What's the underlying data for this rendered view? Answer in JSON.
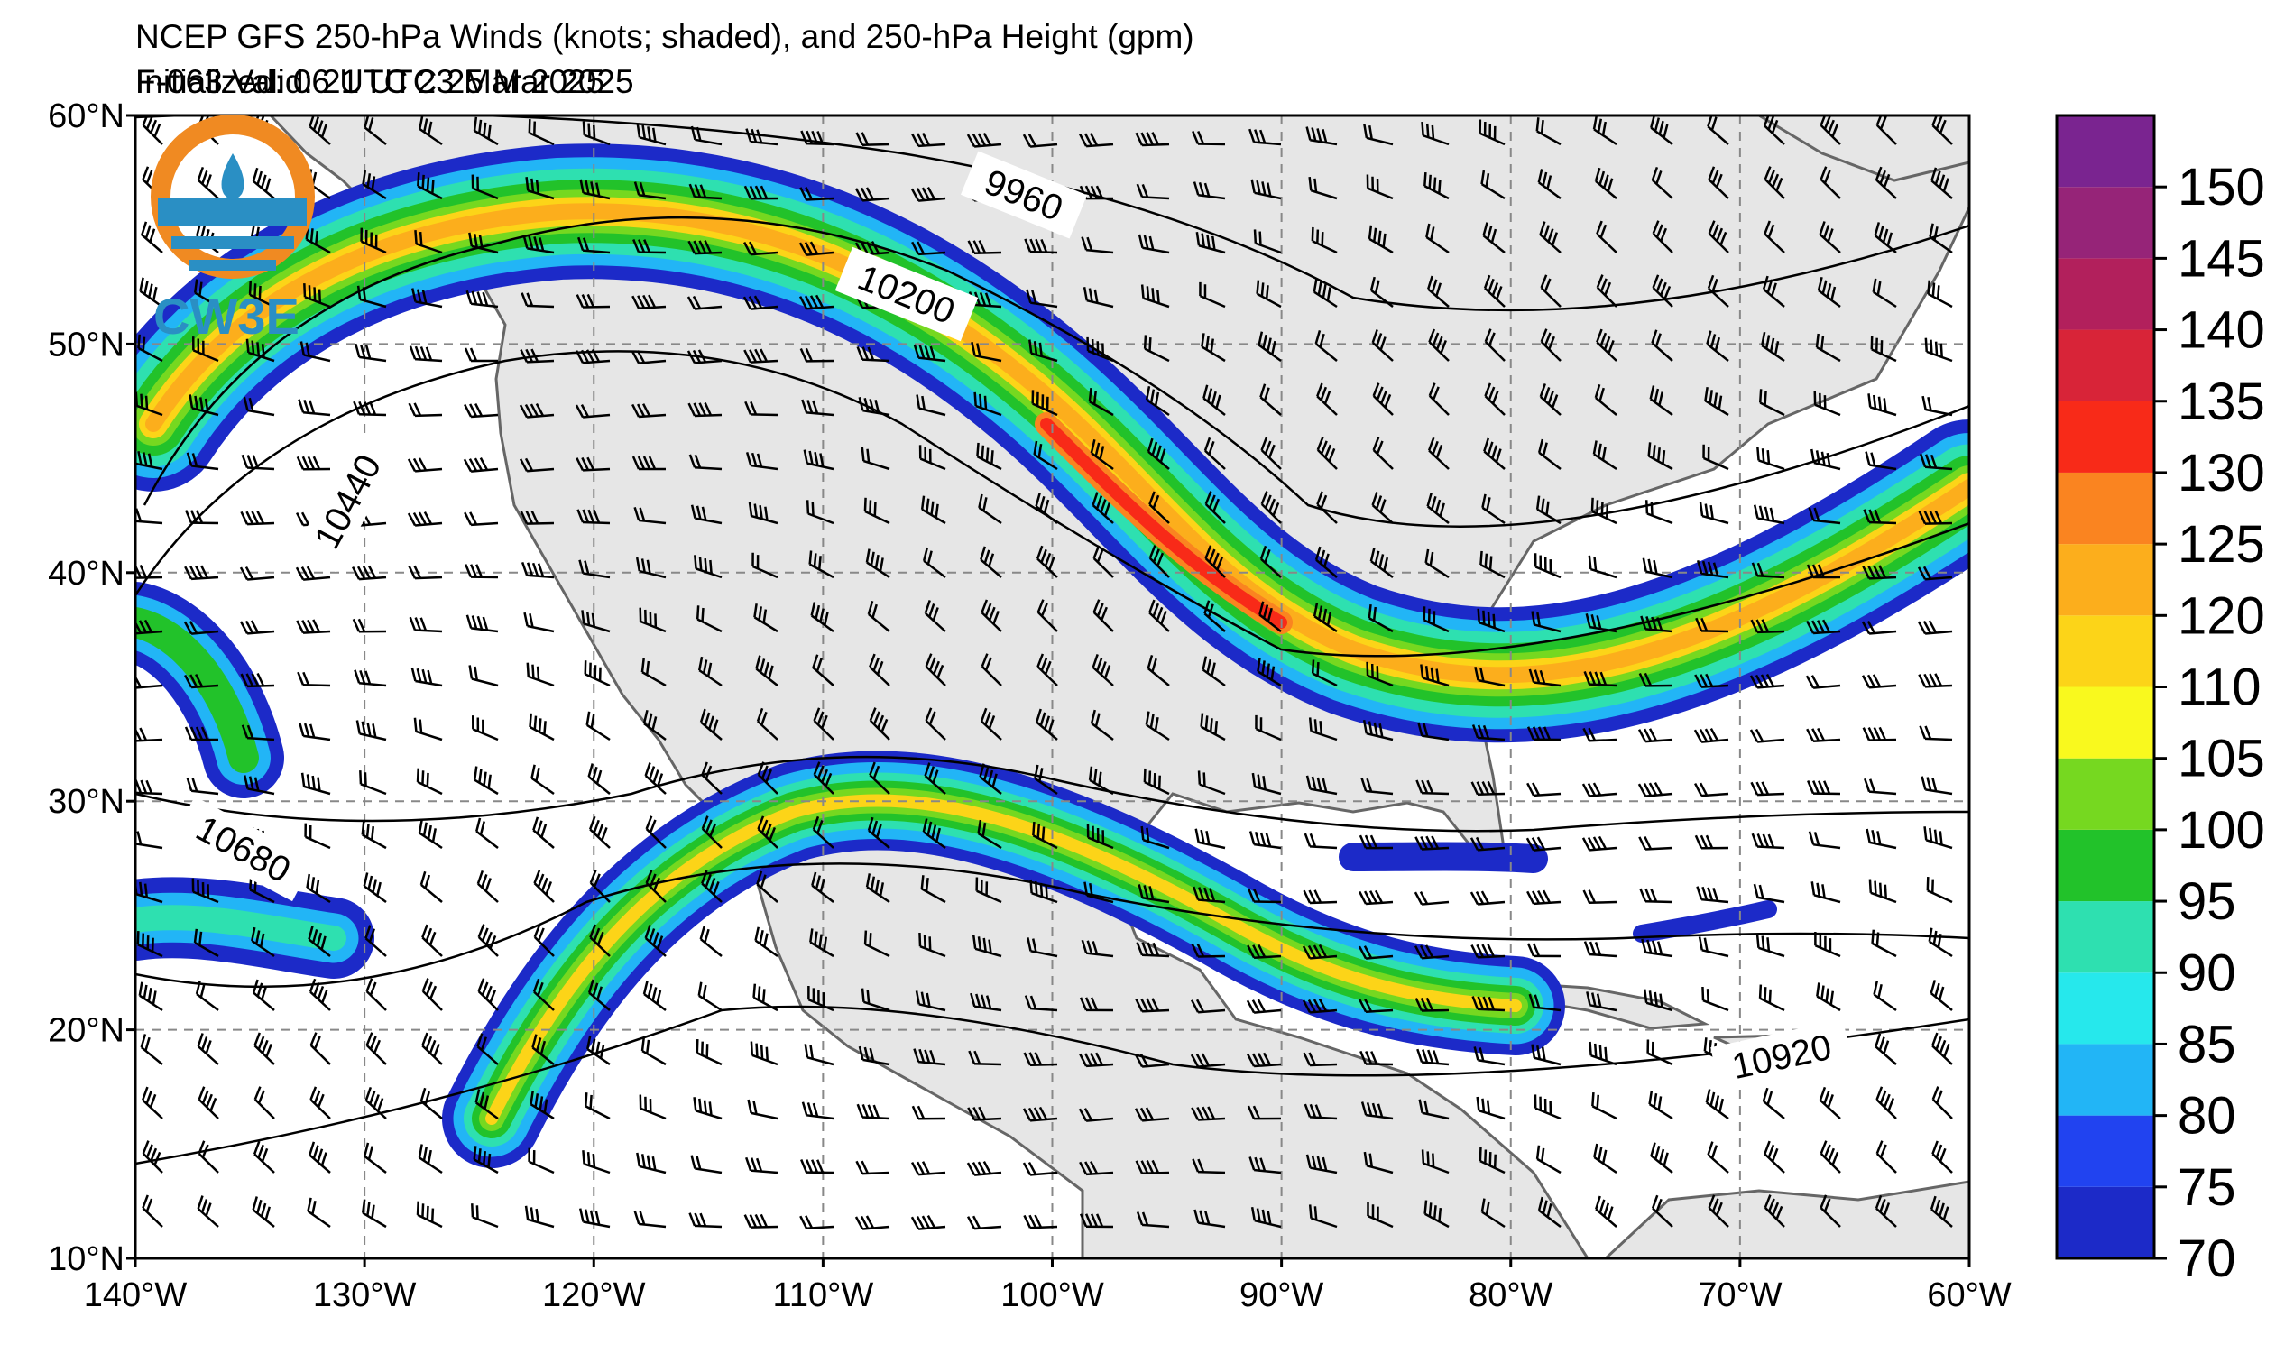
{
  "title": {
    "line1": "NCEP GFS 250-hPa Winds (knots; shaded), and 250-hPa Height (gpm)",
    "initialized": "Initialized: 06 UTC 23 Mar 2025",
    "valid": "F-063  Valid: 21 UTC 25 Mar 2025"
  },
  "logo": {
    "text": "CW3E"
  },
  "axes": {
    "lat_labels": [
      "60°N",
      "50°N",
      "40°N",
      "30°N",
      "20°N",
      "10°N"
    ],
    "lon_labels": [
      "140°W",
      "130°W",
      "120°W",
      "110°W",
      "100°W",
      "90°W",
      "80°W",
      "70°W",
      "60°W"
    ],
    "lon_range": [
      -140,
      -60
    ],
    "lat_range": [
      10,
      60
    ],
    "gridlines": true
  },
  "height_contours": {
    "units": "gpm",
    "labels": [
      "9960",
      "10200",
      "10440",
      "10680",
      "10920"
    ]
  },
  "colorbar": {
    "units": "knots",
    "ticks": [
      "70",
      "75",
      "80",
      "85",
      "90",
      "95",
      "100",
      "105",
      "110",
      "120",
      "125",
      "130",
      "135",
      "140",
      "145",
      "150"
    ],
    "bins": [
      {
        "min": 70,
        "color": "#1c2ac8"
      },
      {
        "min": 75,
        "color": "#2143f0"
      },
      {
        "min": 80,
        "color": "#22b5f6"
      },
      {
        "min": 85,
        "color": "#26e8ec"
      },
      {
        "min": 90,
        "color": "#2ee0b0"
      },
      {
        "min": 95,
        "color": "#22c22a"
      },
      {
        "min": 100,
        "color": "#76d820"
      },
      {
        "min": 105,
        "color": "#f9f91e"
      },
      {
        "min": 110,
        "color": "#fcd418"
      },
      {
        "min": 120,
        "color": "#fcae1c"
      },
      {
        "min": 125,
        "color": "#fa8420"
      },
      {
        "min": 130,
        "color": "#f82a18"
      },
      {
        "min": 135,
        "color": "#d82438"
      },
      {
        "min": 140,
        "color": "#b2205c"
      },
      {
        "min": 145,
        "color": "#962478"
      },
      {
        "min": 150,
        "color": "#7a2490"
      }
    ]
  },
  "colors": {
    "land": "#e6e6e6",
    "ocean": "#ffffff",
    "coast": "#666666",
    "grid": "#888888"
  }
}
